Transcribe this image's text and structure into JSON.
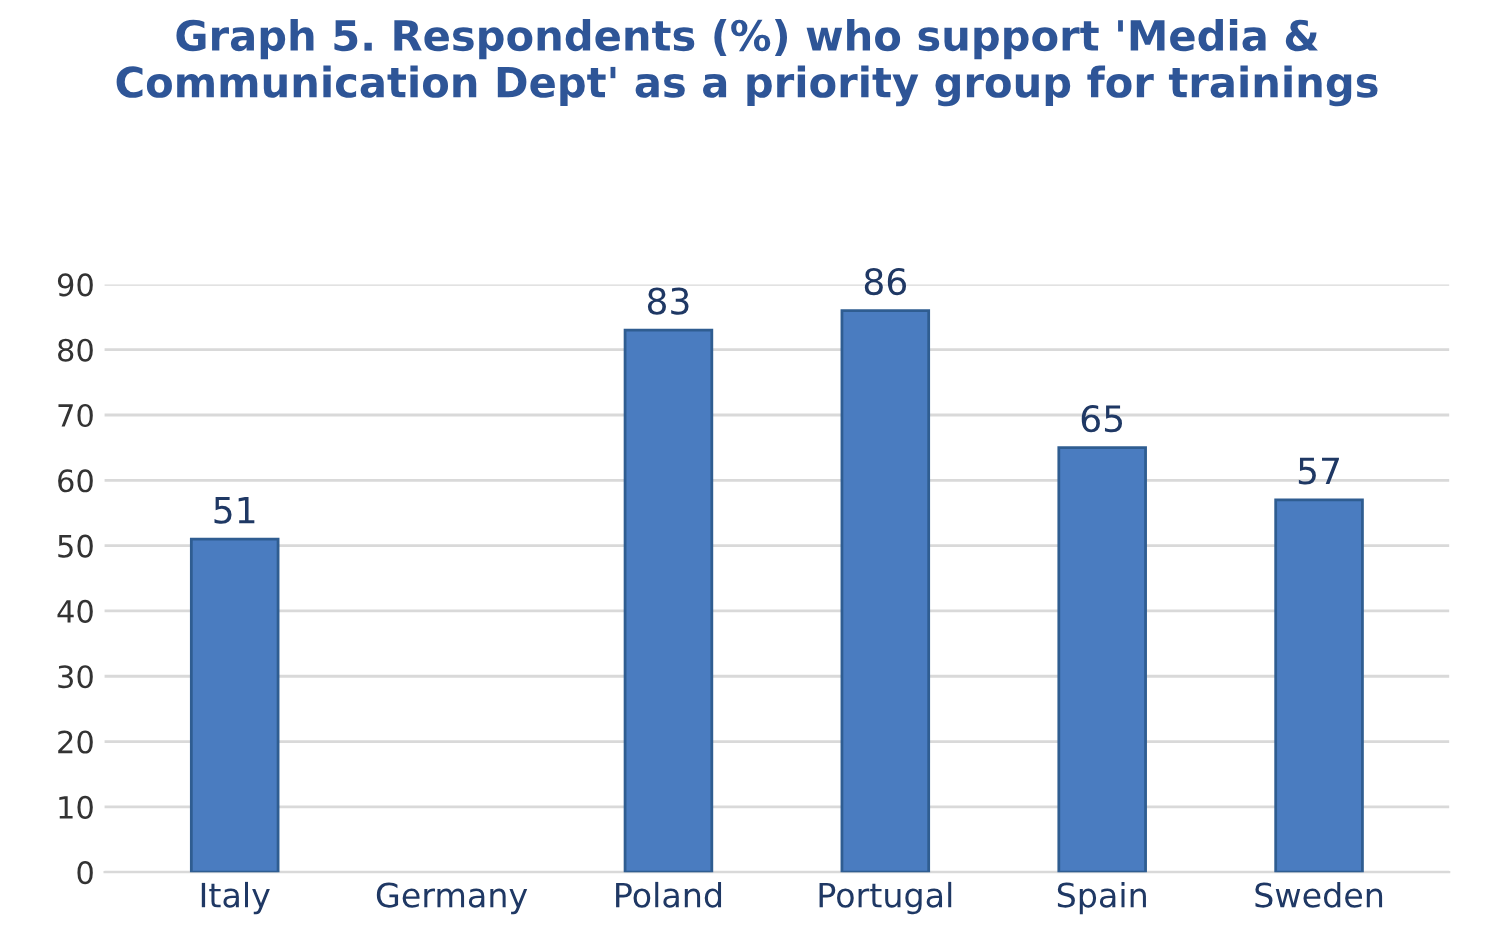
{
  "chart_data": {
    "type": "bar",
    "title": "Graph 5. Respondents (%) who support 'Media &\nCommunication Dept' as a priority group for trainings",
    "categories": [
      "Italy",
      "Germany",
      "Poland",
      "Portugal",
      "Spain",
      "Sweden"
    ],
    "values": [
      51,
      null,
      83,
      86,
      65,
      57
    ],
    "color": "#4a7cc0",
    "ylim": [
      0,
      90
    ],
    "yticks": [
      0,
      10,
      20,
      30,
      40,
      50,
      60,
      70,
      80,
      90
    ],
    "grid": "y",
    "data_labels": true
  }
}
